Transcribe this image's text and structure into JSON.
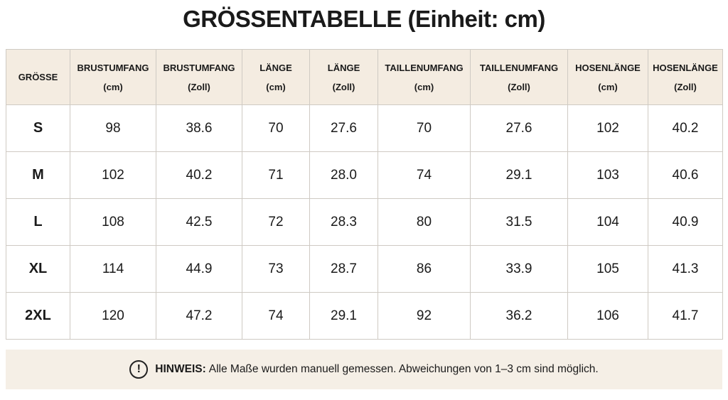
{
  "title": "GRÖSSENTABELLE (Einheit: cm)",
  "table": {
    "header": [
      {
        "name": "GRÖSSE"
      },
      {
        "name": "BRUSTUMFANG",
        "unit": "(cm)"
      },
      {
        "name": "BRUSTUMFANG",
        "unit": "(Zoll)"
      },
      {
        "name": "LÄNGE",
        "unit": "(cm)"
      },
      {
        "name": "LÄNGE",
        "unit": "(Zoll)"
      },
      {
        "name": "TAILLENUMFANG",
        "unit": "(cm)"
      },
      {
        "name": "TAILLENUMFANG",
        "unit": "(Zoll)"
      },
      {
        "name": "HOSENLÄNGE",
        "unit": "(cm)"
      },
      {
        "name": "HOSENLÄNGE",
        "unit": "(Zoll)"
      }
    ],
    "rows": [
      [
        "S",
        "98",
        "38.6",
        "70",
        "27.6",
        "70",
        "27.6",
        "102",
        "40.2"
      ],
      [
        "M",
        "102",
        "40.2",
        "71",
        "28.0",
        "74",
        "29.1",
        "103",
        "40.6"
      ],
      [
        "L",
        "108",
        "42.5",
        "72",
        "28.3",
        "80",
        "31.5",
        "104",
        "40.9"
      ],
      [
        "XL",
        "114",
        "44.9",
        "73",
        "28.7",
        "86",
        "33.9",
        "105",
        "41.3"
      ],
      [
        "2XL",
        "120",
        "47.2",
        "74",
        "29.1",
        "92",
        "36.2",
        "106",
        "41.7"
      ]
    ]
  },
  "note": {
    "icon": "!",
    "label": "HINWEIS:",
    "text": "Alle Maße wurden manuell gemessen. Abweichungen von 1–3 cm sind möglich."
  }
}
